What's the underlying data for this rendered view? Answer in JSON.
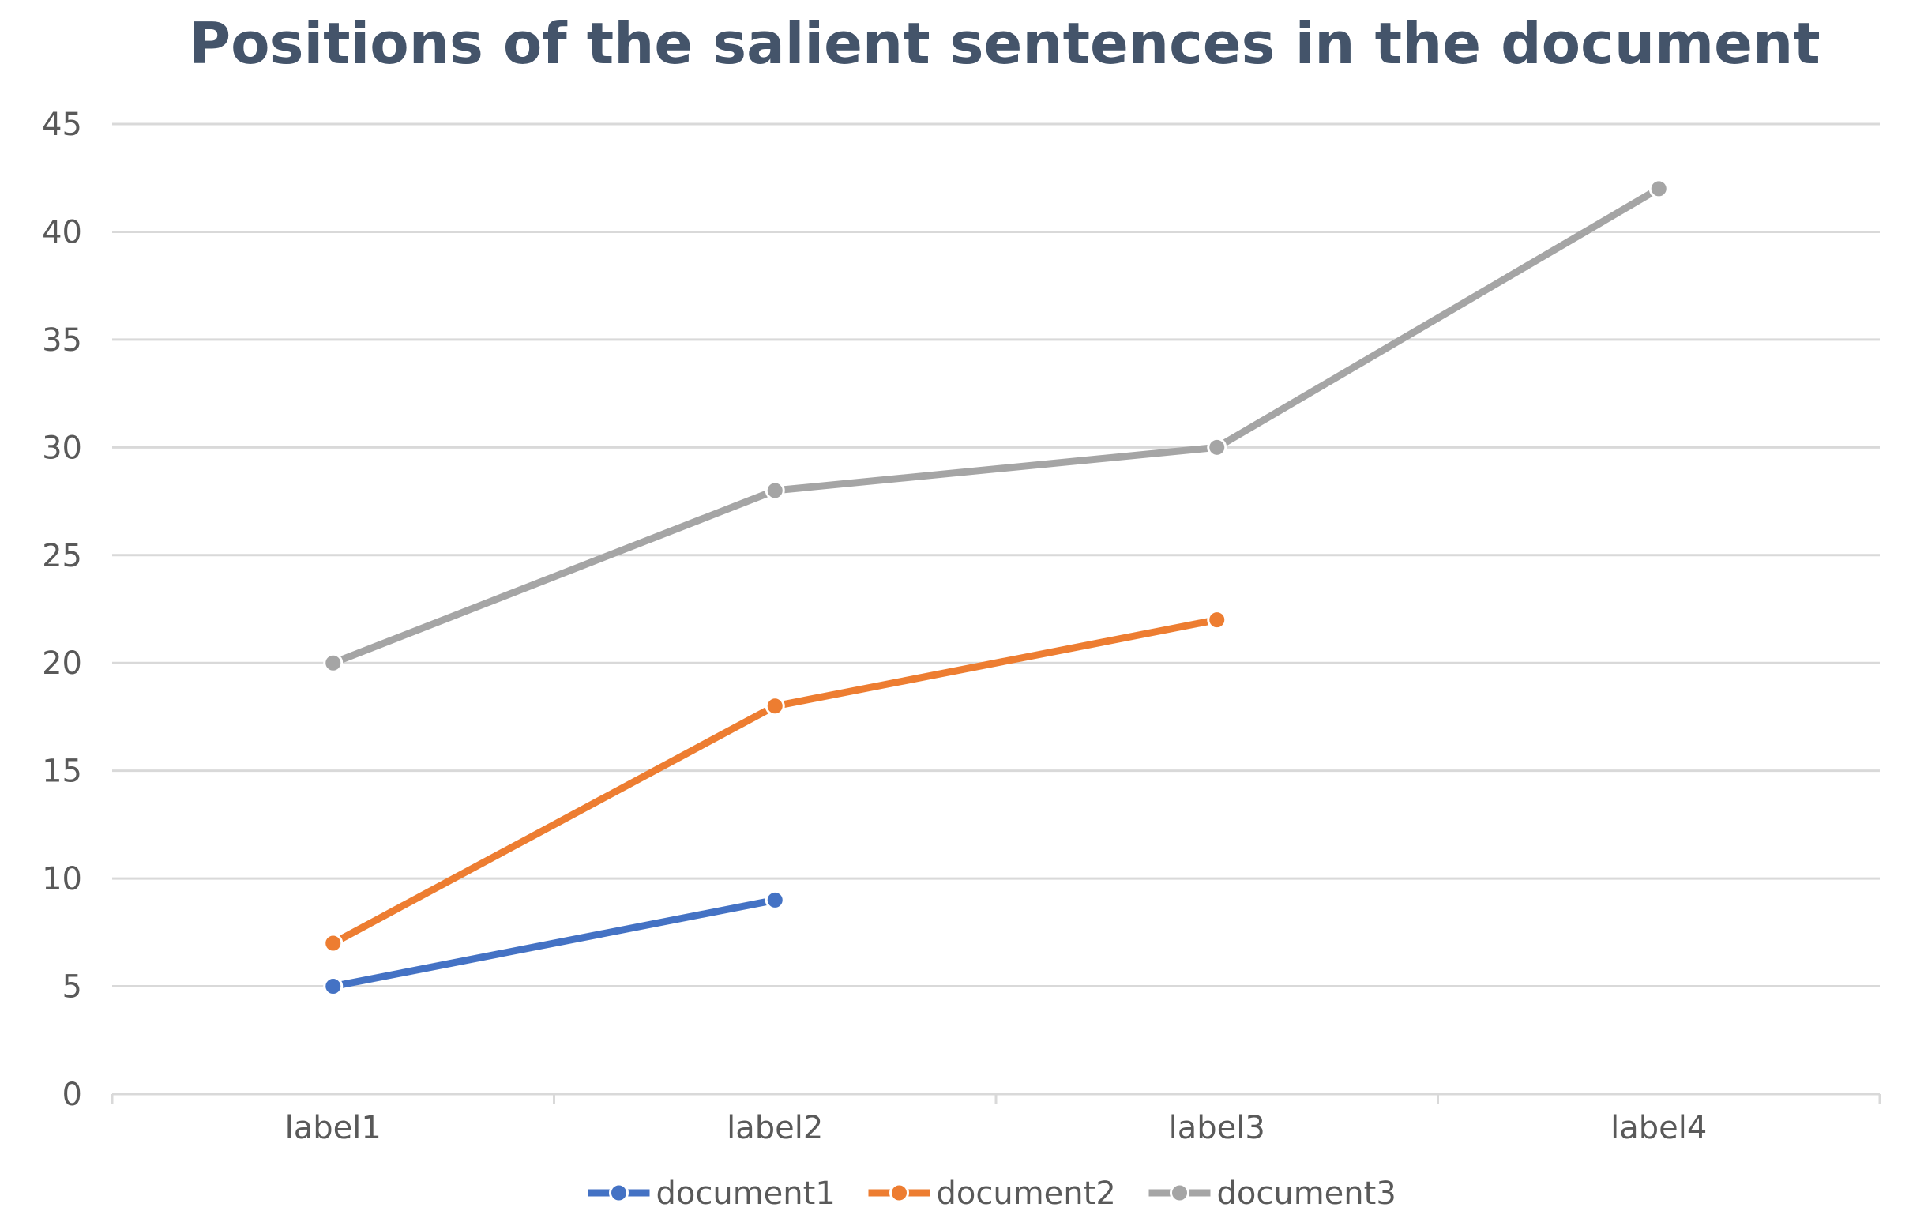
{
  "chart_data": {
    "type": "line",
    "title": "Positions of the salient sentences in the document",
    "xlabel": "",
    "ylabel": "",
    "categories": [
      "label1",
      "label2",
      "label3",
      "label4"
    ],
    "ylim": [
      0,
      45
    ],
    "yticks": [
      0,
      5,
      10,
      15,
      20,
      25,
      30,
      35,
      40,
      45
    ],
    "grid": true,
    "legend": "bottom",
    "series": [
      {
        "name": "document1",
        "color": "#4472c4",
        "values": [
          5,
          9,
          null,
          null
        ]
      },
      {
        "name": "document2",
        "color": "#ed7d31",
        "values": [
          7,
          18,
          22,
          null
        ]
      },
      {
        "name": "document3",
        "color": "#a5a5a5",
        "values": [
          20,
          28,
          30,
          42
        ]
      }
    ]
  }
}
